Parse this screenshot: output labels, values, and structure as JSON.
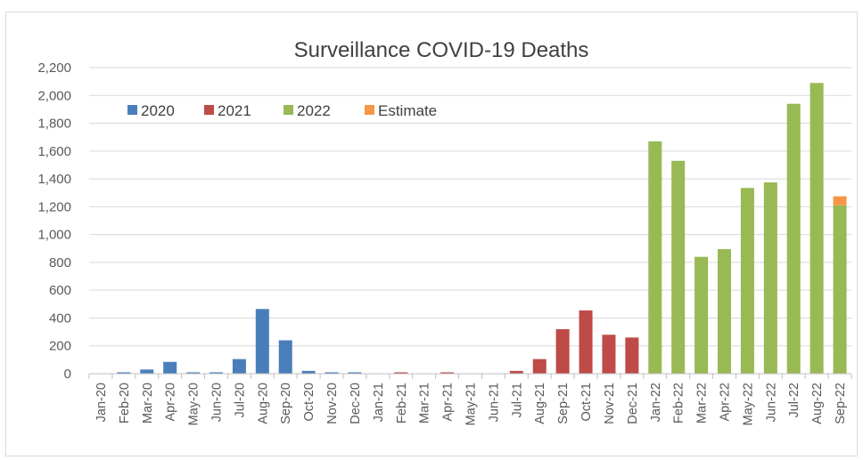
{
  "chart_data": {
    "type": "bar",
    "title": "Surveillance COVID-19 Deaths",
    "xlabel": "",
    "ylabel": "",
    "ylim": [
      0,
      2200
    ],
    "yticks": [
      0,
      200,
      400,
      600,
      800,
      1000,
      1200,
      1400,
      1600,
      1800,
      2000,
      2200
    ],
    "ytick_labels": [
      "0",
      "200",
      "400",
      "600",
      "800",
      "1,000",
      "1,200",
      "1,400",
      "1,600",
      "1,800",
      "2,000",
      "2,200"
    ],
    "grid": true,
    "legend_position": "top-left",
    "categories": [
      "Jan-20",
      "Feb-20",
      "Mar-20",
      "Apr-20",
      "May-20",
      "Jun-20",
      "Jul-20",
      "Aug-20",
      "Sep-20",
      "Oct-20",
      "Nov-20",
      "Dec-20",
      "Jan-21",
      "Feb-21",
      "Mar-21",
      "Apr-21",
      "May-21",
      "Jun-21",
      "Jul-21",
      "Aug-21",
      "Sep-21",
      "Oct-21",
      "Nov-21",
      "Dec-21",
      "Jan-22",
      "Feb-22",
      "Mar-22",
      "Apr-22",
      "May-22",
      "Jun-22",
      "Jul-22",
      "Aug-22",
      "Sep-22"
    ],
    "series": [
      {
        "name": "2020",
        "color": "#4a7ebb",
        "values": [
          0,
          10,
          30,
          85,
          10,
          10,
          105,
          465,
          240,
          20,
          10,
          10,
          null,
          null,
          null,
          null,
          null,
          null,
          null,
          null,
          null,
          null,
          null,
          null,
          null,
          null,
          null,
          null,
          null,
          null,
          null,
          null,
          null
        ]
      },
      {
        "name": "2021",
        "color": "#be4b48",
        "values": [
          null,
          null,
          null,
          null,
          null,
          null,
          null,
          null,
          null,
          null,
          null,
          null,
          0,
          10,
          0,
          10,
          0,
          0,
          20,
          105,
          320,
          455,
          280,
          260,
          null,
          null,
          null,
          null,
          null,
          null,
          null,
          null,
          null
        ]
      },
      {
        "name": "2022",
        "color": "#98b954",
        "values": [
          null,
          null,
          null,
          null,
          null,
          null,
          null,
          null,
          null,
          null,
          null,
          null,
          null,
          null,
          null,
          null,
          null,
          null,
          null,
          null,
          null,
          null,
          null,
          null,
          1670,
          1530,
          840,
          895,
          1335,
          1375,
          1940,
          2090,
          1210
        ]
      },
      {
        "name": "Estimate",
        "color": "#f79646",
        "values": [
          null,
          null,
          null,
          null,
          null,
          null,
          null,
          null,
          null,
          null,
          null,
          null,
          null,
          null,
          null,
          null,
          null,
          null,
          null,
          null,
          null,
          null,
          null,
          null,
          null,
          null,
          null,
          null,
          null,
          null,
          null,
          null,
          65
        ]
      }
    ]
  }
}
